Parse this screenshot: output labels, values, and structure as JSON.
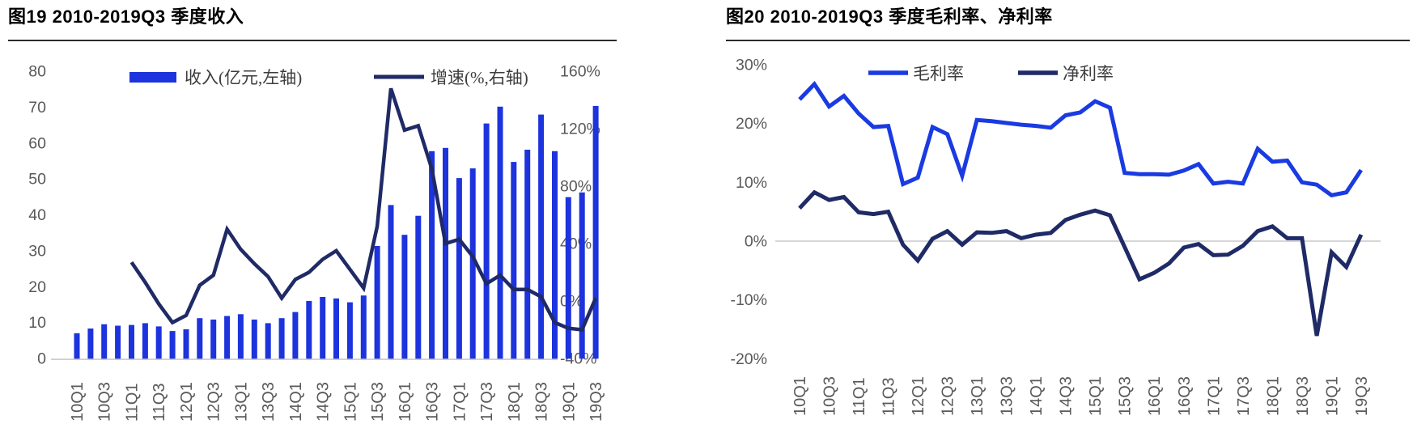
{
  "page": {
    "description": "Two side-by-side broker-report figures: quarterly revenue with growth rate, and quarterly gross/net margin",
    "accent_blue": "#1d33dd",
    "accent_navy": "#1f2a66",
    "axis_text_color": "#595959",
    "grid_color": "#c9c9c9"
  },
  "chart_data": [
    {
      "type": "bar",
      "subtype": "bar-plus-line-dual-axis",
      "title": "图19 2010-2019Q3 季度收入",
      "legend_position": "top",
      "grid": "baseline-only",
      "tick_every": 2,
      "categories": [
        "10Q1",
        "10Q2",
        "10Q3",
        "10Q4",
        "11Q1",
        "11Q2",
        "11Q3",
        "11Q4",
        "12Q1",
        "12Q2",
        "12Q3",
        "12Q4",
        "13Q1",
        "13Q2",
        "13Q3",
        "13Q4",
        "14Q1",
        "14Q2",
        "14Q3",
        "14Q4",
        "15Q1",
        "15Q2",
        "15Q3",
        "15Q4",
        "16Q1",
        "16Q2",
        "16Q3",
        "16Q4",
        "17Q1",
        "17Q2",
        "17Q3",
        "17Q4",
        "18Q1",
        "18Q2",
        "18Q3",
        "18Q4",
        "19Q1",
        "19Q2",
        "19Q3"
      ],
      "series": [
        {
          "name": "收入(亿元,左轴)",
          "type": "bar",
          "axis": "left",
          "color": "#1d33dd",
          "values": [
            7.1,
            8.4,
            9.6,
            9.2,
            9.4,
            9.9,
            9.0,
            7.7,
            8.2,
            11.3,
            10.9,
            11.9,
            12.4,
            10.9,
            9.9,
            11.3,
            13.0,
            16.1,
            17.2,
            16.8,
            15.7,
            17.6,
            31.4,
            42.8,
            34.5,
            39.8,
            57.8,
            58.7,
            50.3,
            53.0,
            65.5,
            70.2,
            54.8,
            58.2,
            68.0,
            57.8,
            45.0,
            46.3,
            70.4
          ]
        },
        {
          "name": "增速(%,右轴)",
          "type": "line",
          "axis": "right",
          "color": "#1f2a66",
          "start_index": 4,
          "values": [
            27,
            13,
            -2,
            -15,
            -10,
            11,
            18,
            50,
            36,
            26,
            17,
            2,
            15,
            20,
            29,
            35,
            22,
            9,
            52,
            148,
            119,
            122,
            92,
            40,
            43,
            31,
            12,
            18,
            8,
            8,
            3,
            -15,
            -19,
            -20,
            2
          ]
        }
      ],
      "left_axis": {
        "ticks": [
          "80",
          "70",
          "60",
          "50",
          "40",
          "30",
          "20",
          "10",
          "0"
        ],
        "range": [
          0,
          80
        ]
      },
      "right_axis": {
        "ticks": [
          "160%",
          "120%",
          "80%",
          "40%",
          "0%",
          "-40%"
        ],
        "range": [
          -40,
          160
        ]
      }
    },
    {
      "type": "line",
      "title": "图20 2010-2019Q3 季度毛利率、净利率",
      "legend_position": "top",
      "grid": "zero-line-only",
      "tick_every": 2,
      "categories": [
        "10Q1",
        "10Q2",
        "10Q3",
        "10Q4",
        "11Q1",
        "11Q2",
        "11Q3",
        "11Q4",
        "12Q1",
        "12Q2",
        "12Q3",
        "12Q4",
        "13Q1",
        "13Q2",
        "13Q3",
        "13Q4",
        "14Q1",
        "14Q2",
        "14Q3",
        "14Q4",
        "15Q1",
        "15Q2",
        "15Q3",
        "15Q4",
        "16Q1",
        "16Q2",
        "16Q3",
        "16Q4",
        "17Q1",
        "17Q2",
        "17Q3",
        "17Q4",
        "18Q1",
        "18Q2",
        "18Q3",
        "18Q4",
        "19Q1",
        "19Q2",
        "19Q3"
      ],
      "series": [
        {
          "name": "毛利率",
          "type": "line",
          "color": "#1a3ae2",
          "values": [
            24.1,
            26.7,
            22.9,
            24.7,
            21.7,
            19.4,
            19.6,
            9.7,
            10.8,
            19.4,
            18.2,
            11.1,
            20.6,
            20.4,
            20.1,
            19.8,
            19.6,
            19.3,
            21.4,
            21.9,
            23.8,
            22.7,
            11.6,
            11.4,
            11.4,
            11.3,
            12.0,
            13.1,
            9.8,
            10.1,
            9.8,
            15.7,
            13.5,
            13.7,
            10.0,
            9.6,
            7.8,
            8.3,
            12.1
          ]
        },
        {
          "name": "净利率",
          "type": "line",
          "color": "#1f2a66",
          "values": [
            5.6,
            8.3,
            7.0,
            7.5,
            4.9,
            4.6,
            5.0,
            -0.6,
            -3.3,
            0.4,
            1.7,
            -0.6,
            1.5,
            1.4,
            1.7,
            0.5,
            1.1,
            1.4,
            3.6,
            4.5,
            5.2,
            4.4,
            -1.0,
            -6.5,
            -5.4,
            -3.8,
            -1.1,
            -0.5,
            -2.4,
            -2.3,
            -0.8,
            1.7,
            2.5,
            0.5,
            0.5,
            -16.1,
            -1.9,
            -4.4,
            1.1
          ]
        }
      ],
      "y_axis": {
        "ticks": [
          "30%",
          "20%",
          "10%",
          "0%",
          "-10%",
          "-20%"
        ],
        "range": [
          -20,
          30
        ]
      }
    }
  ]
}
